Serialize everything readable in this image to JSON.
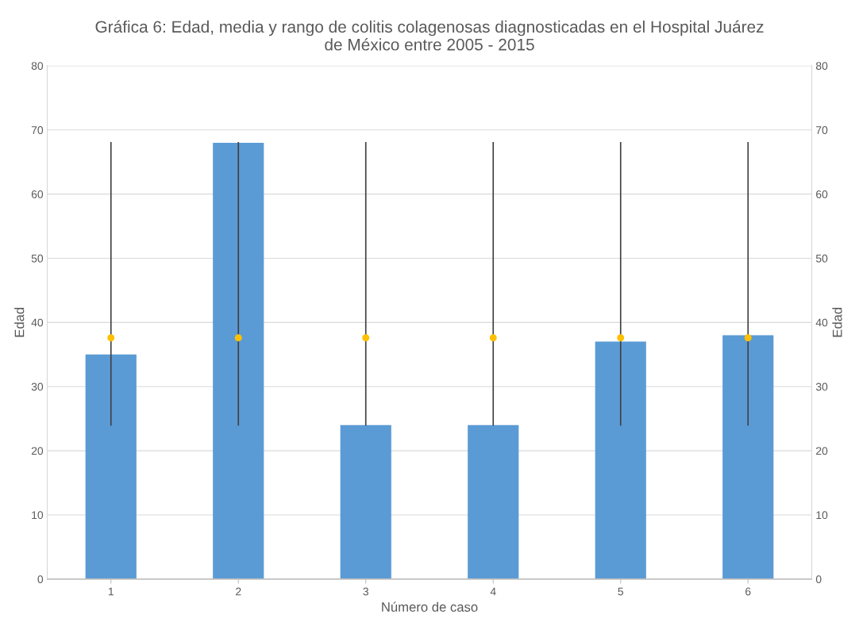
{
  "chart_data": {
    "type": "bar",
    "title": "Gráfica 6: Edad, media y rango de colitis colagenosas diagnosticadas en el Hospital Juárez\nde México entre 2005 - 2015",
    "xlabel": "Número de caso",
    "ylabel": "Edad",
    "y2label": "Edad",
    "categories": [
      "1",
      "2",
      "3",
      "4",
      "5",
      "6"
    ],
    "series": [
      {
        "color": "#5b9bd5",
        "values": [
          35,
          68,
          24,
          24,
          37,
          38
        ]
      },
      {
        "type": "scatter",
        "color": "#ffc000",
        "x": [
          "1",
          "2",
          "3",
          "4",
          "5",
          "6"
        ],
        "values": [
          37.6,
          37.6,
          37.6,
          37.6,
          37.6,
          37.6
        ],
        "errors": [
          [
            24,
            68
          ],
          [
            24,
            68
          ],
          [
            24,
            68
          ],
          [
            24,
            68
          ],
          [
            24,
            68
          ],
          [
            24,
            68
          ]
        ]
      }
    ],
    "ylim": [
      0,
      80
    ],
    "yticks": [
      0,
      10,
      20,
      30,
      40,
      50,
      60,
      70,
      80
    ],
    "y2lim": [
      0,
      80
    ],
    "y2ticks": [
      0,
      10,
      20,
      30,
      40,
      50,
      60,
      70,
      80
    ],
    "grid": "y",
    "legend": false,
    "marker": "circle"
  }
}
